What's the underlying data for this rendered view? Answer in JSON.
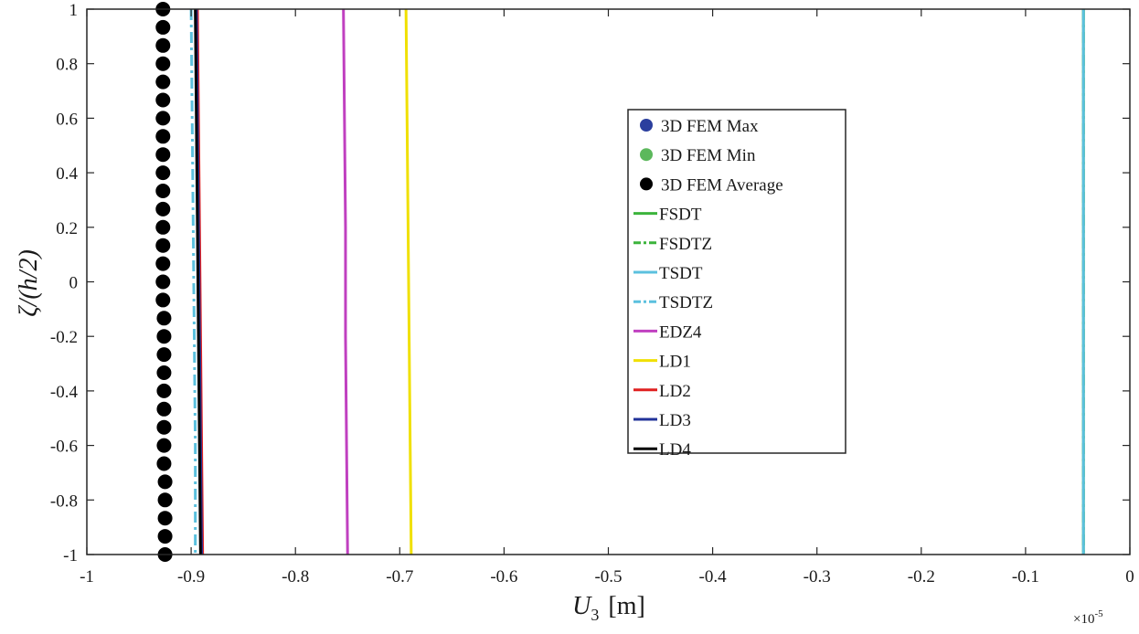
{
  "chart_data": {
    "type": "line",
    "xlabel_main": "U",
    "xlabel_sub": "3",
    "xlabel_unit": "[m]",
    "ylabel": "ζ/(h/2)",
    "x_exponent_base": "×10",
    "x_exponent_power": "-5",
    "xlim": [
      -1,
      0
    ],
    "ylim": [
      -1,
      1
    ],
    "x_ticks": [
      -1,
      -0.9,
      -0.8,
      -0.7,
      -0.6,
      -0.5,
      -0.4,
      -0.3,
      -0.2,
      -0.1,
      0
    ],
    "x_tick_labels": [
      "-1",
      "-0.9",
      "-0.8",
      "-0.7",
      "-0.6",
      "-0.5",
      "-0.4",
      "-0.3",
      "-0.2",
      "-0.1",
      "0"
    ],
    "y_ticks": [
      1,
      0.8,
      0.6,
      0.4,
      0.2,
      0,
      -0.2,
      -0.4,
      -0.6,
      -0.8,
      -1
    ],
    "y_tick_labels": [
      "1",
      "0.8",
      "0.6",
      "0.4",
      "0.2",
      "0",
      "-0.2",
      "-0.4",
      "-0.6",
      "-0.8",
      "-1"
    ],
    "legend_position": "center-right",
    "series": [
      {
        "name": "3D FEM Max",
        "style": "marker",
        "color": "#2b3f9e",
        "x": [],
        "y": []
      },
      {
        "name": "3D FEM Min",
        "style": "marker",
        "color": "#5cb85c",
        "x": [],
        "y": []
      },
      {
        "name": "3D FEM Average",
        "style": "marker",
        "color": "#000000",
        "x": [
          -0.927,
          -0.927,
          -0.927,
          -0.927,
          -0.927,
          -0.927,
          -0.927,
          -0.927,
          -0.927,
          -0.927,
          -0.927,
          -0.927,
          -0.927,
          -0.927,
          -0.927,
          -0.927,
          -0.927,
          -0.926,
          -0.926,
          -0.926,
          -0.926,
          -0.926,
          -0.926,
          -0.926,
          -0.926,
          -0.926,
          -0.925,
          -0.925,
          -0.925,
          -0.925,
          -0.925
        ],
        "y": [
          1,
          0.9333,
          0.8667,
          0.8,
          0.7333,
          0.6667,
          0.6,
          0.5333,
          0.4667,
          0.4,
          0.3333,
          0.2667,
          0.2,
          0.1333,
          0.0667,
          0,
          -0.0667,
          -0.1333,
          -0.2,
          -0.2667,
          -0.3333,
          -0.4,
          -0.4667,
          -0.5333,
          -0.6,
          -0.6667,
          -0.7333,
          -0.8,
          -0.8667,
          -0.9333,
          -1
        ]
      },
      {
        "name": "FSDT",
        "style": "solid",
        "color": "#3cb43c",
        "x": [
          -0.0445,
          -0.0445
        ],
        "y": [
          1,
          -1
        ]
      },
      {
        "name": "FSDTZ",
        "style": "dashdot",
        "color": "#3cb43c",
        "x": [
          -0.0445,
          -0.0445
        ],
        "y": [
          1,
          -1
        ]
      },
      {
        "name": "TSDT",
        "style": "solid",
        "color": "#5bc0de",
        "x": [
          -0.0445,
          -0.0445
        ],
        "y": [
          1,
          -1
        ]
      },
      {
        "name": "TSDTZ",
        "style": "dashdot",
        "color": "#5bc0de",
        "x": [
          -0.9,
          -0.899,
          -0.898,
          -0.897,
          -0.896,
          -0.896
        ],
        "y": [
          1,
          0.6,
          0.2,
          -0.2,
          -0.6,
          -1
        ]
      },
      {
        "name": "EDZ4",
        "style": "solid",
        "color": "#c040c0",
        "x": [
          -0.754,
          -0.753,
          -0.752,
          -0.752,
          -0.751,
          -0.75
        ],
        "y": [
          1,
          0.6,
          0.2,
          -0.2,
          -0.6,
          -1
        ]
      },
      {
        "name": "LD1",
        "style": "solid",
        "color": "#f0e000",
        "x": [
          -0.694,
          -0.693,
          -0.692,
          -0.691,
          -0.69,
          -0.689
        ],
        "y": [
          1,
          0.6,
          0.2,
          -0.2,
          -0.6,
          -1
        ]
      },
      {
        "name": "LD2",
        "style": "solid",
        "color": "#e02020",
        "x": [
          -0.894,
          -0.893,
          -0.892,
          -0.891,
          -0.89,
          -0.889
        ],
        "y": [
          1,
          0.6,
          0.2,
          -0.2,
          -0.6,
          -1
        ]
      },
      {
        "name": "LD3",
        "style": "solid",
        "color": "#223399",
        "x": [
          -0.895,
          -0.894,
          -0.893,
          -0.892,
          -0.891,
          -0.89
        ],
        "y": [
          1,
          0.6,
          0.2,
          -0.2,
          -0.6,
          -1
        ]
      },
      {
        "name": "LD4",
        "style": "solid",
        "color": "#000000",
        "x": [
          -0.896,
          -0.895,
          -0.894,
          -0.893,
          -0.892,
          -0.891
        ],
        "y": [
          1,
          0.6,
          0.2,
          -0.2,
          -0.6,
          -1
        ]
      }
    ]
  }
}
